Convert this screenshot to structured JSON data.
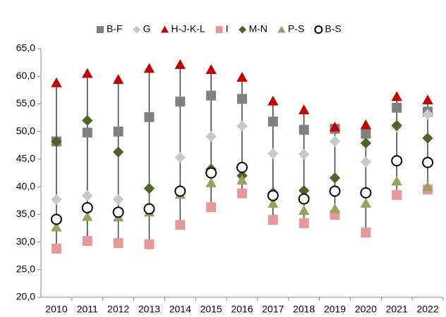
{
  "chart_data": {
    "type": "dotrange",
    "categories": [
      "2010",
      "2011",
      "2012",
      "2013",
      "2014",
      "2015",
      "2016",
      "2017",
      "2018",
      "2019",
      "2020",
      "2021",
      "2022"
    ],
    "series": [
      {
        "name": "B-F",
        "color": "#808080",
        "marker": "square",
        "values": [
          48.2,
          49.8,
          50.0,
          52.6,
          55.4,
          56.5,
          55.9,
          51.8,
          50.3,
          50.5,
          49.6,
          54.3,
          53.6
        ]
      },
      {
        "name": "G",
        "color": "#c8c8c8",
        "marker": "diamond",
        "values": [
          37.7,
          38.4,
          37.7,
          35.6,
          45.3,
          49.1,
          51.0,
          46.0,
          45.9,
          48.2,
          44.5,
          50.8,
          53.1
        ]
      },
      {
        "name": "H-J-K-L",
        "color": "#c00000",
        "marker": "triangle",
        "values": [
          58.8,
          60.5,
          59.4,
          61.4,
          62.1,
          61.2,
          59.8,
          55.5,
          53.9,
          50.8,
          51.2,
          56.3,
          55.7
        ]
      },
      {
        "name": "I",
        "color": "#e6999a",
        "marker": "square",
        "values": [
          28.8,
          30.2,
          29.8,
          29.6,
          33.1,
          36.3,
          38.8,
          34.0,
          33.4,
          34.9,
          31.7,
          38.5,
          39.5
        ]
      },
      {
        "name": "M-N",
        "color": "#4f6228",
        "marker": "diamond",
        "values": [
          48.2,
          52.0,
          46.3,
          39.7,
          39.2,
          43.2,
          42.0,
          38.9,
          39.3,
          41.6,
          47.9,
          51.1,
          48.8
        ]
      },
      {
        "name": "P-S",
        "color": "#9aa060",
        "marker": "triangle",
        "values": [
          32.7,
          34.6,
          34.5,
          35.4,
          38.6,
          40.7,
          41.2,
          37.0,
          35.7,
          36.0,
          37.0,
          41.0,
          40.0
        ]
      },
      {
        "name": "B-S",
        "color": "#000000",
        "marker": "circle",
        "values": [
          34.1,
          36.2,
          35.4,
          36.0,
          39.2,
          42.5,
          43.5,
          38.4,
          37.8,
          39.2,
          38.9,
          44.7,
          44.4
        ]
      }
    ],
    "ylim": [
      20,
      65
    ],
    "yticks": [
      {
        "value": 20,
        "label": "20,0"
      },
      {
        "value": 25,
        "label": "25,0"
      },
      {
        "value": 30,
        "label": "30,0"
      },
      {
        "value": 35,
        "label": "35,0"
      },
      {
        "value": 40,
        "label": "40,0"
      },
      {
        "value": 45,
        "label": "45,0"
      },
      {
        "value": 50,
        "label": "50,0"
      },
      {
        "value": 55,
        "label": "55,0"
      },
      {
        "value": 60,
        "label": "60,0"
      },
      {
        "value": 65,
        "label": "65,0"
      }
    ],
    "legend": "top"
  }
}
